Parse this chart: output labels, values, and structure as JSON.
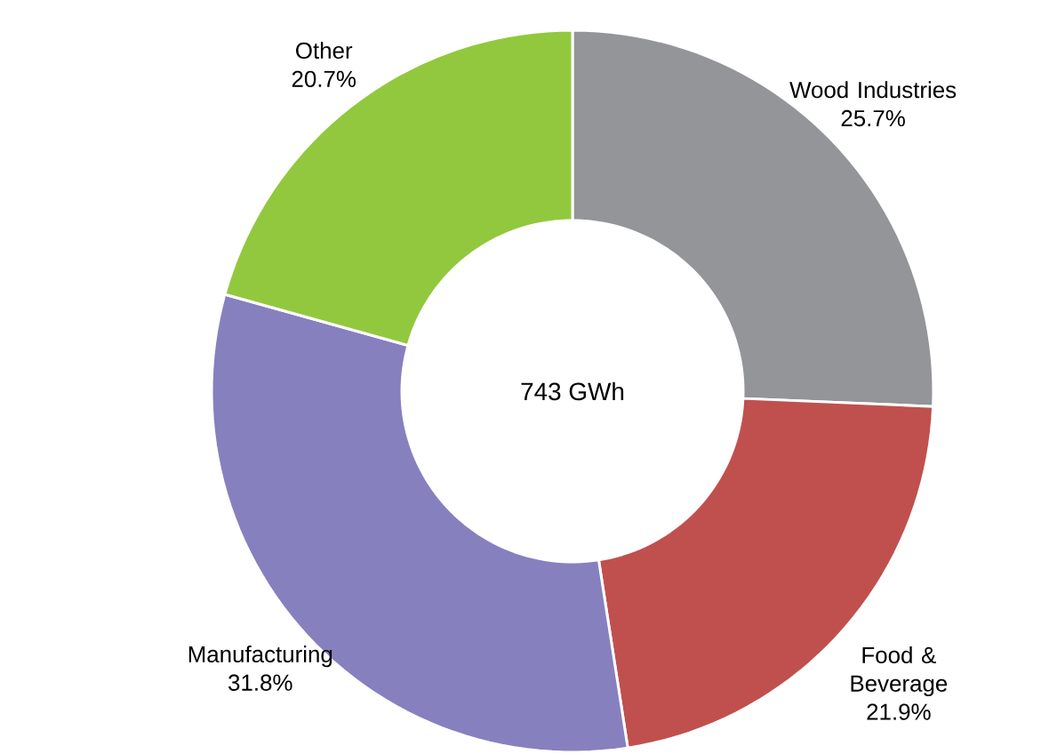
{
  "chart_data": {
    "type": "donut",
    "categories": [
      "Wood Industries",
      "Food & Beverage",
      "Manufacturing",
      "Other"
    ],
    "values": [
      25.7,
      21.9,
      31.8,
      20.7
    ],
    "value_labels": [
      "25.7%",
      "21.9%",
      "31.8%",
      "20.7%"
    ],
    "colors": [
      "#939598",
      "#c0504d",
      "#8780be",
      "#92c83e"
    ],
    "annotations": [
      "743 GWh"
    ]
  }
}
